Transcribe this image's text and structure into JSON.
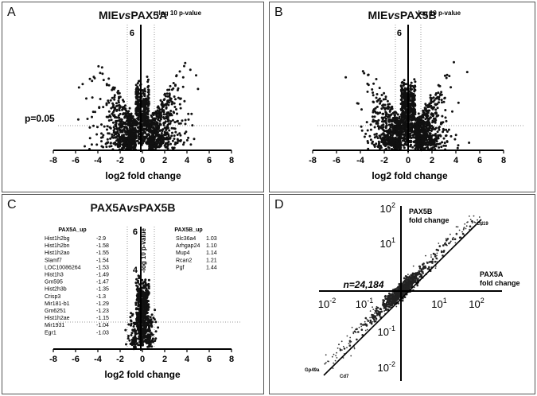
{
  "panels": {
    "A": {
      "label": "A",
      "title_a": "MIE",
      "title_b": "vs",
      "title_c": "PAX5A",
      "ylabel": "-log 10 p-value",
      "ytick": "6",
      "xlabel": "log2 fold change",
      "pvalue": "p=0.05"
    },
    "B": {
      "label": "B",
      "title_a": "MIE",
      "title_b": "vs",
      "title_c": "PAX5B",
      "ylabel": "-log 10 p-value",
      "ytick": "6",
      "xlabel": "log2 fold change"
    },
    "C": {
      "label": "C",
      "title_a": "PAX5A",
      "title_b": "vs",
      "title_c": "PAX5B",
      "ylabel": "-log 10 p-value",
      "ytick_6": "6",
      "ytick_4": "4",
      "xlabel": "log2 fold change"
    },
    "D": {
      "label": "D",
      "n_label": "n=24,184",
      "x_axis_label_1": "PAX5A",
      "x_axis_label_2": "fold change",
      "y_axis_label_1": "PAX5B",
      "y_axis_label_2": "fold change",
      "gene_cd19": "Cd19",
      "gene_gp49a": "Gp49a",
      "gene_cd7": "Cd7"
    }
  },
  "genes": {
    "pax5a_up_title": "PAX5A_up",
    "pax5b_up_title": "PAX5B_up",
    "pax5a_up": [
      {
        "gene": "Hist1h2bg",
        "value": "-2.9"
      },
      {
        "gene": "Hist1h2bn",
        "value": "-1.58"
      },
      {
        "gene": "Hist1h2ao",
        "value": "-1.55"
      },
      {
        "gene": "Slamf7",
        "value": "-1.54"
      },
      {
        "gene": "LOC10086264",
        "value": "-1.53"
      },
      {
        "gene": "Hist1h3",
        "value": "-1.49"
      },
      {
        "gene": "Gm595",
        "value": "-1.47"
      },
      {
        "gene": "Hist2h3b",
        "value": "-1.35"
      },
      {
        "gene": "Crisp3",
        "value": "-1.3"
      },
      {
        "gene": "Mir181-b1",
        "value": "-1.29"
      },
      {
        "gene": "Gm6251",
        "value": "-1.23"
      },
      {
        "gene": "Hist1h2ae",
        "value": "-1.15"
      },
      {
        "gene": "Mir1931",
        "value": "-1.04"
      },
      {
        "gene": "Egr1",
        "value": "-1.03"
      }
    ],
    "pax5b_up": [
      {
        "gene": "Slc36a4",
        "value": "1.03"
      },
      {
        "gene": "Arhgap24",
        "value": "1.10"
      },
      {
        "gene": "Mup4",
        "value": "1.14"
      },
      {
        "gene": "Rcan2",
        "value": "1.21"
      },
      {
        "gene": "Pgf",
        "value": "1.44"
      }
    ]
  },
  "chart_data": [
    {
      "type": "scatter",
      "title": "MIEvsPAX5A",
      "xlabel": "log2 fold change",
      "ylabel": "-log 10 p-value",
      "xlim": [
        -8,
        8
      ],
      "x_ticks": [
        "-8",
        "-6",
        "-4",
        "-2",
        "0",
        "2",
        "4",
        "6",
        "8"
      ],
      "y_ticks": [
        "6"
      ],
      "fold_threshold": [
        -1,
        1
      ],
      "pvalue_threshold": "p=0.05",
      "xspread": 1.7,
      "xmax": 6.5,
      "ymax": 5.6
    },
    {
      "type": "scatter",
      "title": "MIEvsPAX5B",
      "xlabel": "log2 fold change",
      "ylabel": "-log 10 p-value",
      "xlim": [
        -8,
        8
      ],
      "x_ticks": [
        "-8",
        "-6",
        "-4",
        "-2",
        "0",
        "2",
        "4",
        "6",
        "8"
      ],
      "y_ticks": [
        "6"
      ],
      "fold_threshold": [
        -1,
        1
      ],
      "xspread": 1.4,
      "xmax": 6,
      "ymax": 5.6
    },
    {
      "type": "scatter",
      "title": "PAX5AvsPAX5B",
      "xlabel": "log2 fold change",
      "ylabel": "-log 10 p-value",
      "xlim": [
        -8,
        8
      ],
      "x_ticks": [
        "-8",
        "-6",
        "-4",
        "-2",
        "0",
        "2",
        "4",
        "6",
        "8"
      ],
      "y_ticks": [
        "6",
        "4"
      ],
      "fold_threshold": [
        -1,
        1
      ],
      "xspread": 0.45,
      "xmax": 3,
      "ymax": 4.5
    },
    {
      "type": "scatter",
      "scale": "log",
      "xlabel": "PAX5A fold change",
      "ylabel": "PAX5B fold change",
      "x_ticks": [
        "10-2",
        "10-1",
        "101",
        "102"
      ],
      "y_ticks": [
        "102",
        "101",
        "10-1",
        "10-2"
      ],
      "n": "n=24,184",
      "diagonal": true
    }
  ]
}
